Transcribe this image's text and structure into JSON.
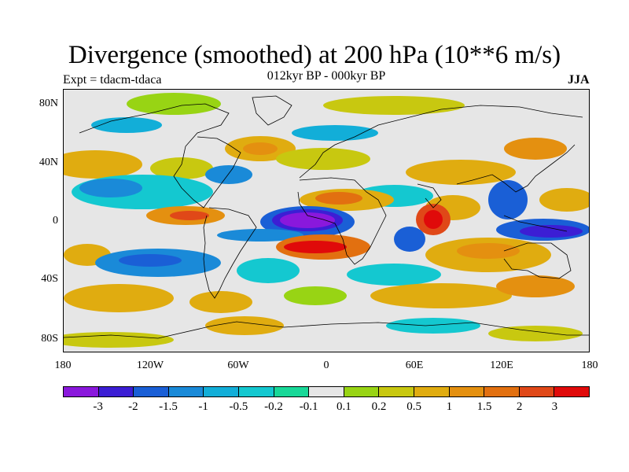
{
  "title": "Divergence (smoothed) at 200 hPa (10**6 m/s)",
  "subtitle": "012kyr BP - 000kyr BP",
  "left_label": "Expt = tdacm-tdaca",
  "right_label": "JJA",
  "lat_labels": [
    "80N",
    "40N",
    "0",
    "40S",
    "80S"
  ],
  "lon_labels": [
    "180",
    "120W",
    "60W",
    "0",
    "60E",
    "120E",
    "180"
  ],
  "colorbar": {
    "labels": [
      "-3",
      "-2",
      "-1.5",
      "-1",
      "-0.5",
      "-0.2",
      "-0.1",
      "0.1",
      "0.2",
      "0.5",
      "1",
      "1.5",
      "2",
      "3"
    ],
    "colors": [
      "#8a18dc",
      "#3c1ed4",
      "#1a5fd6",
      "#1a8ad8",
      "#12aed8",
      "#14c8d0",
      "#18d898",
      "#e6e6e6",
      "#98d414",
      "#c8c810",
      "#e0ac10",
      "#e49010",
      "#e27010",
      "#e04818",
      "#e00a0a"
    ]
  }
}
